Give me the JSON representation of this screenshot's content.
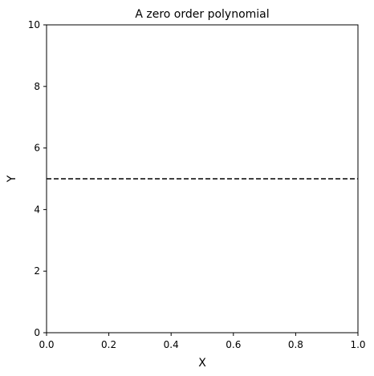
{
  "chart_data": {
    "type": "line",
    "title": "A zero order polynomial",
    "xlabel": "X",
    "ylabel": "Y",
    "xlim": [
      0.0,
      1.0
    ],
    "ylim": [
      0,
      10
    ],
    "x_ticks": [
      0.0,
      0.2,
      0.4,
      0.6,
      0.8,
      1.0
    ],
    "x_tick_labels": [
      "0.0",
      "0.2",
      "0.4",
      "0.6",
      "0.8",
      "1.0"
    ],
    "y_ticks": [
      0,
      2,
      4,
      6,
      8,
      10
    ],
    "y_tick_labels": [
      "0",
      "2",
      "4",
      "6",
      "8",
      "10"
    ],
    "grid": false,
    "series": [
      {
        "x": [
          0.0,
          1.0
        ],
        "y": [
          5,
          5
        ],
        "line_style": "dashed",
        "color": "#000000"
      }
    ]
  }
}
